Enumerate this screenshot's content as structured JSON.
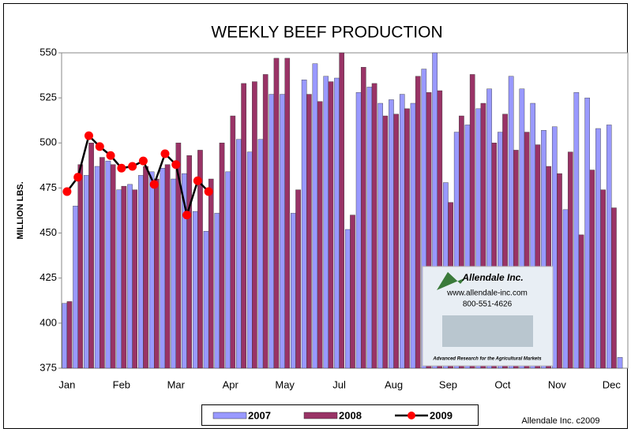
{
  "chart_data": {
    "type": "bar",
    "title": "WEEKLY BEEF PRODUCTION",
    "y_label": "MILLION LBS.",
    "categories": [
      "Jan",
      null,
      null,
      null,
      null,
      "Feb",
      null,
      null,
      null,
      null,
      "Mar",
      null,
      null,
      null,
      null,
      "Apr",
      null,
      null,
      null,
      null,
      "May",
      null,
      null,
      null,
      null,
      "Jul",
      null,
      null,
      null,
      null,
      "Aug",
      null,
      null,
      null,
      null,
      "Sep",
      null,
      null,
      null,
      null,
      "Oct",
      null,
      null,
      null,
      null,
      "Nov",
      null,
      null,
      null,
      null,
      "Dec",
      null
    ],
    "series": [
      {
        "name": "2007",
        "type": "bar",
        "color": "#9999ff",
        "values": [
          411,
          465,
          482,
          487,
          490,
          474,
          477,
          482,
          484,
          486,
          480,
          483,
          462,
          451,
          461,
          484,
          502,
          495,
          502,
          527,
          527,
          461,
          535,
          544,
          537,
          536,
          452,
          528,
          531,
          522,
          524,
          527,
          522,
          541,
          550,
          478,
          506,
          510,
          519,
          530,
          506,
          537,
          530,
          522,
          507,
          509,
          463,
          528,
          525,
          508,
          510,
          381
        ]
      },
      {
        "name": "2008",
        "type": "bar",
        "color": "#993366",
        "values": [
          412,
          488,
          500,
          492,
          488,
          476,
          474,
          487,
          480,
          488,
          500,
          493,
          496,
          480,
          500,
          515,
          533,
          534,
          538,
          547,
          547,
          474,
          527,
          523,
          534,
          550,
          460,
          542,
          533,
          515,
          516,
          519,
          537,
          528,
          529,
          467,
          515,
          538,
          522,
          500,
          516,
          496,
          506,
          499,
          487,
          483,
          495,
          449,
          485,
          474,
          464,
          null
        ]
      },
      {
        "name": "2009",
        "type": "line",
        "color": "#ff0000",
        "line_color": "#000000",
        "values": [
          473,
          481,
          504,
          498,
          493,
          486,
          487,
          490,
          477,
          494,
          488,
          460,
          479,
          473,
          null,
          null,
          null,
          null,
          null,
          null,
          null,
          null,
          null,
          null,
          null,
          null,
          null,
          null,
          null,
          null,
          null,
          null,
          null,
          null,
          null,
          null,
          null,
          null,
          null,
          null,
          null,
          null,
          null,
          null,
          null,
          null,
          null,
          null,
          null,
          null,
          null,
          null
        ]
      }
    ],
    "ylim": [
      375,
      550
    ],
    "yticks": [
      375,
      400,
      425,
      450,
      475,
      500,
      525,
      550
    ],
    "grid": false,
    "credit": "Allendale Inc. c2009",
    "logo": {
      "name": "Allendale Inc.",
      "url": "www.allendale-inc.com",
      "phone": "800-551-4626",
      "tagline": "Advanced Research for the Agricultural Markets"
    }
  }
}
